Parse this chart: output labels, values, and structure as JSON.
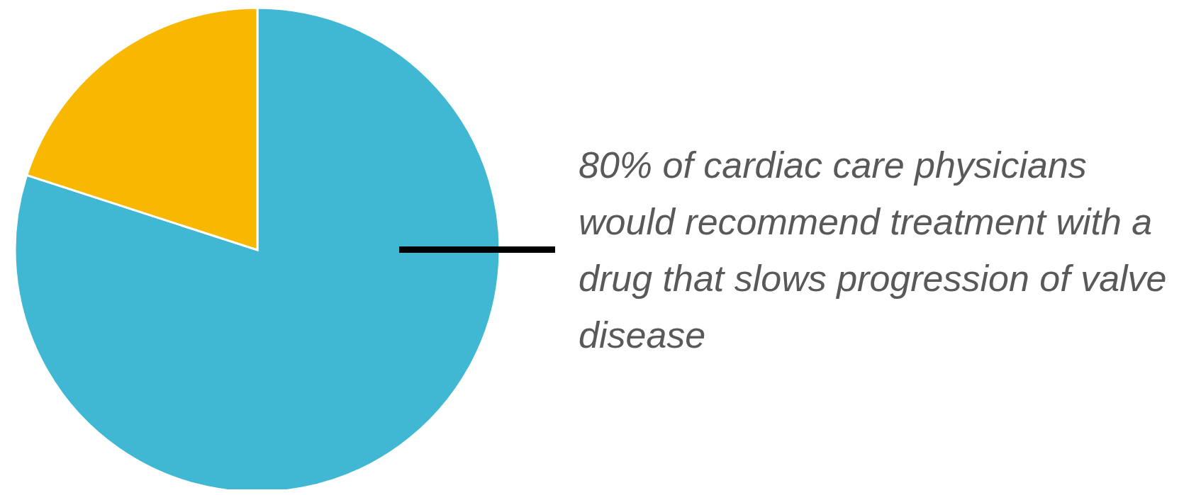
{
  "chart_data": {
    "type": "pie",
    "categories": [
      null,
      null
    ],
    "values": [
      80,
      20
    ],
    "colors": [
      "#41b8d3",
      "#f9b800"
    ],
    "annotations": [
      "80% of cardiac care physicians would recommend treatment with a drug that slows progression of valve disease"
    ]
  }
}
